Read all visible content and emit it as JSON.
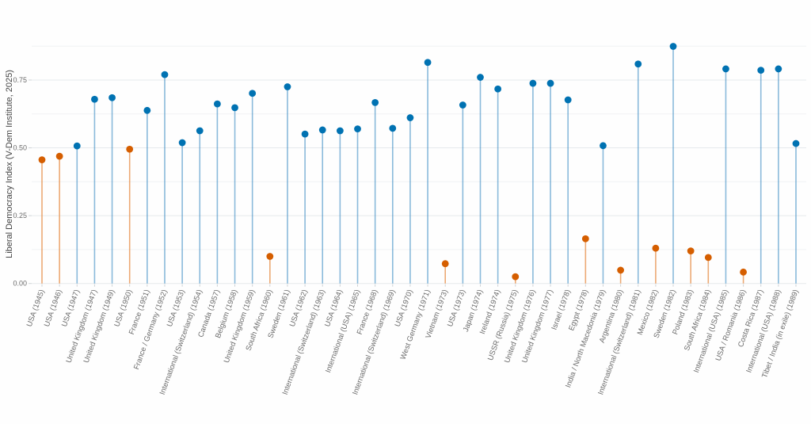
{
  "chart_data": {
    "type": "lollipop",
    "title": "",
    "xlabel": "",
    "ylabel": "Liberal Democracy Index (V-Dem Institute, 2025)",
    "ylim": [
      0,
      0.875
    ],
    "yticks": [
      0.0,
      0.25,
      0.5,
      0.75
    ],
    "ytick_labels": [
      "0.00",
      "0.25",
      "0.50",
      "0.75"
    ],
    "minor_gridlines": [
      0.125,
      0.375,
      0.625,
      0.875
    ],
    "grid": true,
    "legend": "none",
    "colors": {
      "orange": "#D55E00",
      "blue": "#0072B2"
    },
    "categories": [
      "USA (1945)",
      "USA (1946)",
      "USA (1947)",
      "United Kingdom (1947)",
      "United Kingdom (1949)",
      "USA (1950)",
      "France (1951)",
      "France / Germany (1952)",
      "USA (1953)",
      "International (Switzerland) (1954)",
      "Canada (1957)",
      "Belgium (1958)",
      "United Kingdom (1959)",
      "South Africa (1960)",
      "Sweden (1961)",
      "USA (1962)",
      "International (Switzerland) (1963)",
      "USA (1964)",
      "International (USA) (1965)",
      "France (1968)",
      "International (Switzerland) (1969)",
      "USA (1970)",
      "West Germany (1971)",
      "Vietnam (1973)",
      "USA (1973)",
      "Japan (1974)",
      "Ireland (1974)",
      "USSR (Russia) (1975)",
      "United Kingdom (1976)",
      "United Kingdom (1977)",
      "Israel (1978)",
      "Egypt (1978)",
      "India / North Macedonia (1979)",
      "Argentina (1980)",
      "International (Switzerland) (1981)",
      "Mexico (1982)",
      "Sweden (1982)",
      "Poland (1983)",
      "South Africa (1984)",
      "International (USA) (1985)",
      "USA / Romania (1986)",
      "Costa Rica (1987)",
      "International (USA) (1988)",
      "Tibet / India (in exile) (1989)"
    ],
    "values": [
      0.456,
      0.469,
      0.507,
      0.679,
      0.685,
      0.495,
      0.638,
      0.77,
      0.519,
      0.563,
      0.662,
      0.648,
      0.701,
      0.1,
      0.725,
      0.551,
      0.566,
      0.563,
      0.57,
      0.667,
      0.572,
      0.611,
      0.815,
      0.073,
      0.658,
      0.76,
      0.717,
      0.025,
      0.738,
      0.738,
      0.677,
      0.165,
      0.508,
      0.049,
      0.809,
      0.13,
      0.874,
      0.12,
      0.096,
      0.791,
      0.042,
      0.786,
      0.791,
      0.516
    ],
    "point_colors": [
      "orange",
      "orange",
      "blue",
      "blue",
      "blue",
      "orange",
      "blue",
      "blue",
      "blue",
      "blue",
      "blue",
      "blue",
      "blue",
      "orange",
      "blue",
      "blue",
      "blue",
      "blue",
      "blue",
      "blue",
      "blue",
      "blue",
      "blue",
      "orange",
      "blue",
      "blue",
      "blue",
      "orange",
      "blue",
      "blue",
      "blue",
      "orange",
      "blue",
      "orange",
      "blue",
      "orange",
      "blue",
      "orange",
      "orange",
      "blue",
      "orange",
      "blue",
      "blue",
      "blue"
    ]
  }
}
